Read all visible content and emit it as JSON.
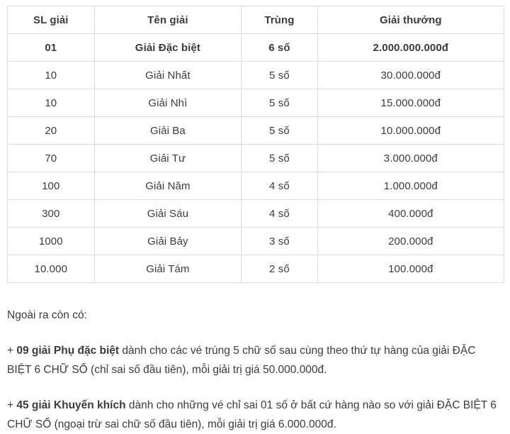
{
  "table": {
    "headers": [
      "SL giải",
      "Tên giải",
      "Trùng",
      "Giải thưởng"
    ],
    "rows": [
      {
        "quantity": "01",
        "name": "Giải Đặc biệt",
        "match": "6 số",
        "prize": "2.000.000.000đ",
        "bold": true
      },
      {
        "quantity": "10",
        "name": "Giải Nhất",
        "match": "5 số",
        "prize": "30.000.000đ",
        "bold": false
      },
      {
        "quantity": "10",
        "name": "Giải Nhì",
        "match": "5 số",
        "prize": "15.000.000đ",
        "bold": false
      },
      {
        "quantity": "20",
        "name": "Giải Ba",
        "match": "5 số",
        "prize": "10.000.000đ",
        "bold": false
      },
      {
        "quantity": "70",
        "name": "Giải Tư",
        "match": "5 số",
        "prize": "3.000.000đ",
        "bold": false
      },
      {
        "quantity": "100",
        "name": "Giải Năm",
        "match": "4 số",
        "prize": "1.000.000đ",
        "bold": false
      },
      {
        "quantity": "300",
        "name": "Giải Sáu",
        "match": "4 số",
        "prize": "400.000đ",
        "bold": false
      },
      {
        "quantity": "1000",
        "name": "Giải Bảy",
        "match": "3 số",
        "prize": "200.000đ",
        "bold": false
      },
      {
        "quantity": "10.000",
        "name": "Giải Tám",
        "match": "2 số",
        "prize": "100.000đ",
        "bold": false
      }
    ]
  },
  "notes": {
    "intro": "Ngoài ra còn có:",
    "bullet1": {
      "prefix": "+ ",
      "bold": "09 giải Phụ đặc biệt",
      "rest": " dành cho các vé trúng 5 chữ số sau cùng theo thứ tự hàng của giải ĐẶC BIỆT 6 CHỮ SỐ (chỉ sai số đầu tiên), mỗi giải trị giá 50.000.000đ."
    },
    "bullet2": {
      "prefix": "+ ",
      "bold": "45 giải Khuyến khích",
      "rest": " dành cho những vé chỉ sai 01 số ở bất cứ hàng nào so với giải ĐẶC BIỆT 6 CHỮ SỐ (ngoại trừ sai chữ số đầu tiên), mỗi giải trị giá 6.000.000đ."
    }
  },
  "colors": {
    "border": "#dbdbdb",
    "text": "#3b3b3b",
    "background": "#ffffff"
  }
}
